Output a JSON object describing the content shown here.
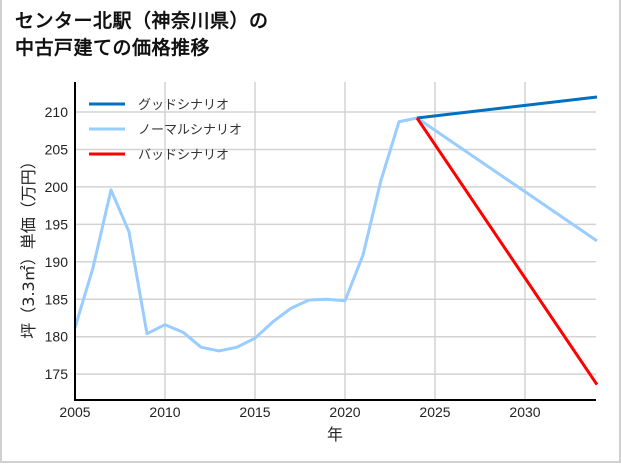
{
  "title": {
    "line1": "センター北駅（神奈川県）の",
    "line2": "中古戸建ての価格推移"
  },
  "chart_data": {
    "type": "line",
    "title": "センター北駅（神奈川県）の中古戸建ての価格推移",
    "xlabel": "年",
    "ylabel": "坪（3.3㎡）単価（万円）",
    "xlim": [
      2005,
      2034
    ],
    "ylim": [
      171.5,
      214
    ],
    "x_ticks": [
      2005,
      2010,
      2015,
      2020,
      2025,
      2030
    ],
    "y_ticks": [
      175,
      180,
      185,
      190,
      195,
      200,
      205,
      210
    ],
    "grid": true,
    "legend_position": "upper left",
    "series": [
      {
        "name": "グッドシナリオ",
        "color": "#0070c0",
        "x": [
          2024,
          2034
        ],
        "values": [
          209.2,
          212.0
        ]
      },
      {
        "name": "ノーマルシナリオ",
        "color": "#99ccff",
        "x": [
          2005,
          2006,
          2007,
          2008,
          2009,
          2010,
          2011,
          2012,
          2013,
          2014,
          2015,
          2016,
          2017,
          2018,
          2019,
          2020,
          2021,
          2022,
          2023,
          2024,
          2034
        ],
        "values": [
          181.2,
          189.2,
          199.6,
          194.0,
          180.4,
          181.6,
          180.6,
          178.6,
          178.1,
          178.6,
          179.8,
          182.0,
          183.8,
          184.9,
          185.0,
          184.8,
          190.9,
          200.9,
          208.7,
          209.2,
          192.8
        ]
      },
      {
        "name": "バッドシナリオ",
        "color": "#ff0000",
        "x": [
          2024,
          2034
        ],
        "values": [
          209.2,
          173.6
        ]
      }
    ]
  }
}
